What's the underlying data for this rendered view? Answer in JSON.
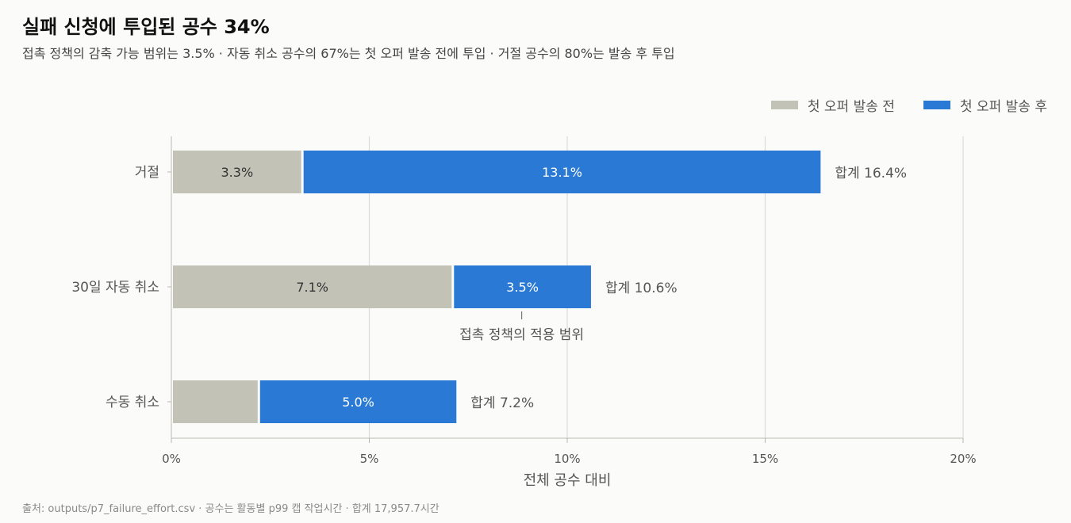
{
  "title": "실패 신청에 투입된 공수 34%",
  "subtitle": "접촉 정책의 감축 가능 범위는 3.5% · 자동 취소 공수의 67%는 첫 오퍼 발송 전에 투입 · 거절 공수의 80%는 발송 후 투입",
  "source": "출처: outputs/p7_failure_effort.csv · 공수는 활동별 p99 캡 작업시간 · 합계 17,957.7시간",
  "colors": {
    "before": "#c3c2b6",
    "after": "#2a7ad5"
  },
  "chart_data": {
    "type": "bar",
    "orientation": "horizontal",
    "stacked": true,
    "categories": [
      "거절",
      "30일 자동 취소",
      "수동 취소"
    ],
    "series": [
      {
        "name": "첫 오퍼 발송 전",
        "values": [
          3.3,
          7.1,
          2.2
        ],
        "labels": [
          "3.3%",
          "7.1%",
          ""
        ]
      },
      {
        "name": "첫 오퍼 발송 후",
        "values": [
          13.1,
          3.5,
          5.0
        ],
        "labels": [
          "13.1%",
          "3.5%",
          "5.0%"
        ]
      }
    ],
    "totals": [
      "합계 16.4%",
      "합계 10.6%",
      "합계 7.2%"
    ],
    "total_values": [
      16.4,
      10.6,
      7.2
    ],
    "xlabel": "전체 공수 대비",
    "ylabel": "",
    "xlim": [
      0,
      20
    ],
    "xticks": [
      0,
      5,
      10,
      15,
      20
    ],
    "xtick_labels": [
      "0%",
      "5%",
      "10%",
      "15%",
      "20%"
    ],
    "grid": "vertical",
    "legend_position": "top-right",
    "annotation": {
      "text": "접촉 정책의 적용 범위",
      "category": "30일 자동 취소",
      "series": "첫 오퍼 발송 후"
    }
  }
}
